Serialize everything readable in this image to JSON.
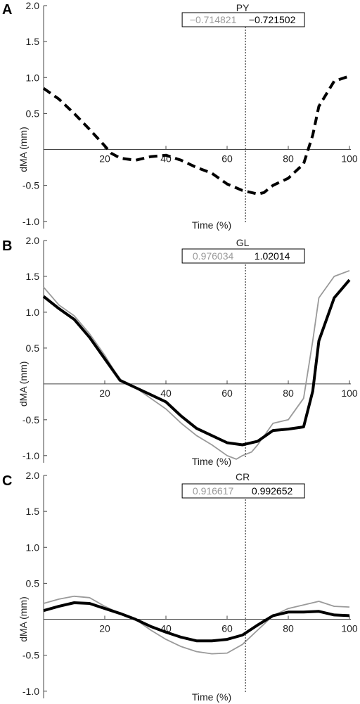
{
  "chart_data": [
    {
      "type": "line",
      "panel_label": "A",
      "title": "PY",
      "xlabel": "Time (%)",
      "ylabel": "dMA (mm)",
      "xlim": [
        0,
        100
      ],
      "ylim": [
        -1.1,
        2.0
      ],
      "x_ticks": [
        "20",
        "40",
        "60",
        "80",
        "100"
      ],
      "y_ticks": [
        "2.0",
        "1.5",
        "1.0",
        "0.5",
        "-0.5",
        "-1.0"
      ],
      "marker_x": 66,
      "legend_values": [
        "−0.714821",
        "−0.721502"
      ],
      "series": [
        {
          "color": "#000000",
          "style": "dashed",
          "x": [
            0,
            5,
            10,
            15,
            20,
            22,
            25,
            30,
            35,
            40,
            45,
            50,
            55,
            60,
            65,
            70,
            72,
            75,
            80,
            85,
            88,
            90,
            95,
            100
          ],
          "y": [
            0.85,
            0.7,
            0.5,
            0.28,
            0.05,
            -0.05,
            -0.12,
            -0.15,
            -0.1,
            -0.08,
            -0.15,
            -0.25,
            -0.33,
            -0.48,
            -0.57,
            -0.62,
            -0.6,
            -0.5,
            -0.4,
            -0.2,
            0.2,
            0.6,
            0.95,
            1.02
          ]
        }
      ]
    },
    {
      "type": "line",
      "panel_label": "B",
      "title": "GL",
      "xlabel": "Time (%)",
      "ylabel": "dMA (mm)",
      "xlim": [
        0,
        100
      ],
      "ylim": [
        -1.1,
        2.0
      ],
      "x_ticks": [
        "20",
        "40",
        "60",
        "80",
        "100"
      ],
      "y_ticks": [
        "2.0",
        "1.5",
        "1.0",
        "0.5",
        "-0.5",
        "-1.0"
      ],
      "marker_x": 66,
      "legend_values": [
        "0.976034",
        "1.02014"
      ],
      "series": [
        {
          "color": "#9a9a9a",
          "style": "solid",
          "x": [
            0,
            5,
            10,
            15,
            20,
            25,
            30,
            35,
            40,
            45,
            50,
            55,
            60,
            63,
            65,
            68,
            70,
            75,
            80,
            85,
            88,
            90,
            95,
            100
          ],
          "y": [
            1.35,
            1.1,
            0.95,
            0.7,
            0.4,
            0.05,
            -0.05,
            -0.2,
            -0.35,
            -0.55,
            -0.72,
            -0.85,
            -1.0,
            -1.05,
            -1.0,
            -0.95,
            -0.85,
            -0.55,
            -0.5,
            -0.2,
            0.6,
            1.2,
            1.5,
            1.58
          ]
        },
        {
          "color": "#000000",
          "style": "solid",
          "x": [
            0,
            5,
            10,
            15,
            20,
            25,
            30,
            35,
            40,
            45,
            50,
            55,
            60,
            65,
            70,
            75,
            80,
            85,
            88,
            90,
            95,
            100
          ],
          "y": [
            1.22,
            1.05,
            0.9,
            0.65,
            0.35,
            0.05,
            -0.05,
            -0.15,
            -0.25,
            -0.45,
            -0.62,
            -0.72,
            -0.82,
            -0.85,
            -0.8,
            -0.65,
            -0.63,
            -0.6,
            -0.1,
            0.6,
            1.2,
            1.45
          ]
        }
      ]
    },
    {
      "type": "line",
      "panel_label": "C",
      "title": "CR",
      "xlabel": "Time (%)",
      "ylabel": "dMA (mm)",
      "xlim": [
        0,
        100
      ],
      "ylim": [
        -1.1,
        2.0
      ],
      "x_ticks": [
        "20",
        "40",
        "60",
        "80",
        "100"
      ],
      "y_ticks": [
        "2.0",
        "1.5",
        "1.0",
        "0.5",
        "-0.5",
        "-1.0"
      ],
      "marker_x": 66,
      "legend_values": [
        "0.916617",
        "0.992652"
      ],
      "series": [
        {
          "color": "#9a9a9a",
          "style": "solid",
          "x": [
            0,
            5,
            10,
            15,
            20,
            25,
            30,
            35,
            40,
            45,
            50,
            55,
            60,
            65,
            70,
            75,
            80,
            85,
            90,
            95,
            100
          ],
          "y": [
            0.22,
            0.28,
            0.32,
            0.3,
            0.18,
            0.08,
            0.0,
            -0.15,
            -0.28,
            -0.38,
            -0.45,
            -0.48,
            -0.47,
            -0.35,
            -0.15,
            0.05,
            0.15,
            0.2,
            0.25,
            0.18,
            0.17
          ]
        },
        {
          "color": "#000000",
          "style": "solid",
          "x": [
            0,
            5,
            10,
            15,
            20,
            25,
            30,
            35,
            40,
            45,
            50,
            55,
            60,
            65,
            70,
            75,
            80,
            85,
            90,
            95,
            100
          ],
          "y": [
            0.12,
            0.18,
            0.23,
            0.22,
            0.15,
            0.08,
            0.0,
            -0.1,
            -0.18,
            -0.25,
            -0.3,
            -0.3,
            -0.28,
            -0.22,
            -0.08,
            0.05,
            0.1,
            0.1,
            0.11,
            0.06,
            0.05
          ]
        }
      ]
    }
  ]
}
